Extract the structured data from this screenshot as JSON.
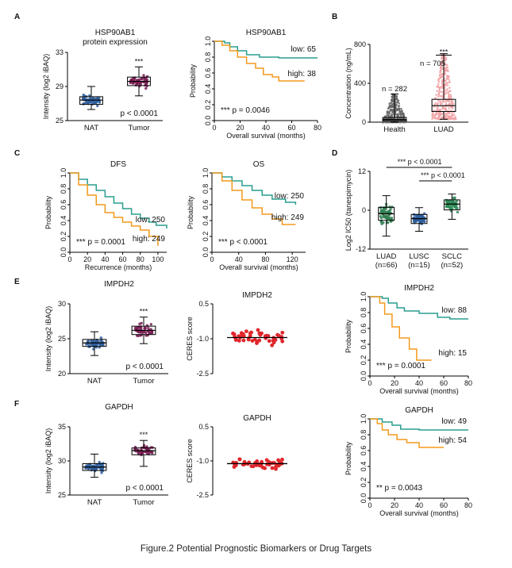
{
  "caption": "Figure.2 Potential Prognostic Biomarkers or Drug Targets",
  "colors": {
    "nat": "#2f5f9e",
    "tumor": "#7a1f55",
    "health": "#666666",
    "luad_conc": "#f2a3a7",
    "high": "#f39a1d",
    "low": "#2a9d8f",
    "luad": "#2e7d4f",
    "lusc": "#2f5f9e",
    "sclc": "#2e8b57",
    "ceres": "#e0262b"
  },
  "chart_data": [
    {
      "id": "A1",
      "panel": "A",
      "type": "box",
      "title": "HSP90AB1",
      "subtitle": "protein expression",
      "ylabel": "Intensity (log2 iBAQ)",
      "categories": [
        "NAT",
        "Tumor"
      ],
      "ylim": [
        25,
        33
      ],
      "yticks": [
        "25",
        "29",
        "33"
      ],
      "boxes": [
        {
          "q1": 26.9,
          "med": 27.4,
          "q3": 27.8,
          "min": 26.3,
          "max": 29.0
        },
        {
          "q1": 29.1,
          "med": 29.6,
          "q3": 30.1,
          "min": 27.9,
          "max": 31.3
        }
      ],
      "annotations": [
        "***",
        "p < 0.0001"
      ]
    },
    {
      "id": "A2",
      "panel": "A",
      "type": "line",
      "title": "HSP90AB1",
      "xlabel": "Overall survival (months)",
      "ylabel": "Probability",
      "xlim": [
        0,
        80
      ],
      "ylim": [
        0,
        1
      ],
      "xticks": [
        "0",
        "20",
        "40",
        "60",
        "80"
      ],
      "yticks": [
        "0.0",
        "0.2",
        "0.4",
        "0.6",
        "0.8",
        "1.0"
      ],
      "series": [
        {
          "name": "low: 65",
          "points": [
            [
              0,
              1
            ],
            [
              8,
              0.98
            ],
            [
              12,
              0.93
            ],
            [
              18,
              0.88
            ],
            [
              25,
              0.83
            ],
            [
              35,
              0.8
            ],
            [
              50,
              0.79
            ],
            [
              80,
              0.79
            ]
          ]
        },
        {
          "name": "high: 38",
          "points": [
            [
              0,
              1
            ],
            [
              6,
              0.95
            ],
            [
              12,
              0.88
            ],
            [
              18,
              0.8
            ],
            [
              25,
              0.72
            ],
            [
              32,
              0.66
            ],
            [
              38,
              0.58
            ],
            [
              45,
              0.55
            ],
            [
              50,
              0.5
            ],
            [
              70,
              0.5
            ]
          ]
        }
      ],
      "annotations": [
        "*** p = 0.0046"
      ]
    },
    {
      "id": "B",
      "panel": "B",
      "type": "box",
      "title": "",
      "ylabel": "Concentration (ng/mL)",
      "categories": [
        "Health",
        "LUAD"
      ],
      "ylim": [
        0,
        800
      ],
      "yticks": [
        "0",
        "400",
        "800"
      ],
      "boxes": [
        {
          "q1": 15,
          "med": 28,
          "q3": 48,
          "min": 0,
          "max": 290
        },
        {
          "q1": 110,
          "med": 170,
          "q3": 235,
          "min": 30,
          "max": 705
        }
      ],
      "annotations": [
        "n = 282",
        "n = 705",
        "***"
      ]
    },
    {
      "id": "C1",
      "panel": "C",
      "type": "line",
      "title": "DFS",
      "xlabel": "Recurrence (months)",
      "ylabel": "Probability",
      "xlim": [
        0,
        110
      ],
      "ylim": [
        0,
        1
      ],
      "xticks": [
        "0",
        "20",
        "40",
        "60",
        "80",
        "100"
      ],
      "yticks": [
        "0.0",
        "0.2",
        "0.4",
        "0.6",
        "0.8",
        "1.0"
      ],
      "series": [
        {
          "name": "low: 250",
          "points": [
            [
              0,
              1
            ],
            [
              10,
              0.92
            ],
            [
              20,
              0.85
            ],
            [
              30,
              0.78
            ],
            [
              40,
              0.7
            ],
            [
              50,
              0.62
            ],
            [
              60,
              0.55
            ],
            [
              70,
              0.48
            ],
            [
              80,
              0.43
            ],
            [
              90,
              0.38
            ],
            [
              98,
              0.34
            ],
            [
              110,
              0.3
            ]
          ]
        },
        {
          "name": "high: 249",
          "points": [
            [
              0,
              1
            ],
            [
              10,
              0.85
            ],
            [
              20,
              0.72
            ],
            [
              30,
              0.6
            ],
            [
              40,
              0.5
            ],
            [
              50,
              0.44
            ],
            [
              60,
              0.38
            ],
            [
              70,
              0.33
            ],
            [
              80,
              0.28
            ],
            [
              90,
              0.2
            ],
            [
              100,
              0.08
            ]
          ]
        }
      ],
      "annotations": [
        "*** p = 0.0001"
      ]
    },
    {
      "id": "C2",
      "panel": "C",
      "type": "line",
      "title": "OS",
      "xlabel": "Overall survival (months)",
      "ylabel": "Probability",
      "xlim": [
        0,
        140
      ],
      "ylim": [
        0,
        1
      ],
      "xticks": [
        "0",
        "40",
        "80",
        "120"
      ],
      "yticks": [
        "0.0",
        "0.2",
        "0.4",
        "0.6",
        "0.8",
        "1.0"
      ],
      "series": [
        {
          "name": "low: 250",
          "points": [
            [
              0,
              1
            ],
            [
              15,
              0.95
            ],
            [
              30,
              0.9
            ],
            [
              45,
              0.84
            ],
            [
              60,
              0.78
            ],
            [
              75,
              0.72
            ],
            [
              90,
              0.67
            ],
            [
              110,
              0.63
            ],
            [
              125,
              0.6
            ]
          ]
        },
        {
          "name": "high: 249",
          "points": [
            [
              0,
              1
            ],
            [
              15,
              0.9
            ],
            [
              30,
              0.78
            ],
            [
              45,
              0.66
            ],
            [
              60,
              0.56
            ],
            [
              75,
              0.48
            ],
            [
              90,
              0.42
            ],
            [
              105,
              0.35
            ],
            [
              125,
              0.35
            ]
          ]
        }
      ],
      "annotations": [
        "*** p < 0.0001"
      ]
    },
    {
      "id": "D",
      "panel": "D",
      "type": "box",
      "title": "",
      "ylabel": "Log2 IC50 (tanespimycin)",
      "categories": [
        "LUAD\n(n=66)",
        "LUSC\n(n=15)",
        "SCLC\n(n=52)"
      ],
      "ylim": [
        -12,
        12
      ],
      "yticks": [
        "-12",
        "0",
        "12"
      ],
      "boxes": [
        {
          "q1": -3.1,
          "med": -1.1,
          "q3": 0.9,
          "min": -8,
          "max": 4.5
        },
        {
          "q1": -4.1,
          "med": -2.6,
          "q3": -1.3,
          "min": -6.5,
          "max": 0.8
        },
        {
          "q1": 0.1,
          "med": 1.9,
          "q3": 3.2,
          "min": -2.8,
          "max": 5.0
        }
      ],
      "annotations": [
        "*** p < 0.0001",
        "*** p < 0.0001"
      ]
    },
    {
      "id": "E1",
      "panel": "E",
      "type": "box",
      "title": "IMPDH2",
      "ylabel": "Intensity (log2 iBAQ)",
      "categories": [
        "NAT",
        "Tumor"
      ],
      "ylim": [
        20,
        30
      ],
      "yticks": [
        "20",
        "25",
        "30"
      ],
      "boxes": [
        {
          "q1": 23.9,
          "med": 24.4,
          "q3": 24.9,
          "min": 22.6,
          "max": 26.0
        },
        {
          "q1": 25.6,
          "med": 26.2,
          "q3": 26.8,
          "min": 24.3,
          "max": 28.1
        }
      ],
      "annotations": [
        "***",
        "p < 0.0001"
      ]
    },
    {
      "id": "E2",
      "panel": "E",
      "type": "scatter",
      "title": "IMPDH2",
      "ylabel": "CERES score",
      "ylim": [
        -2.5,
        0.5
      ],
      "yticks": [
        "0.5",
        "-1.0",
        "-2.5"
      ],
      "center": -0.95,
      "spread": 0.35,
      "count": 45,
      "annotations": []
    },
    {
      "id": "E3",
      "panel": "E",
      "type": "line",
      "title": "IMPDH2",
      "xlabel": "Overall survival (months)",
      "ylabel": "Probability",
      "xlim": [
        0,
        80
      ],
      "ylim": [
        0,
        1
      ],
      "xticks": [
        "0",
        "20",
        "40",
        "60",
        "80"
      ],
      "yticks": [
        "0.0",
        "0.2",
        "0.4",
        "0.6",
        "0.8",
        "1.0"
      ],
      "series": [
        {
          "name": "low: 88",
          "points": [
            [
              0,
              1
            ],
            [
              10,
              0.98
            ],
            [
              15,
              0.92
            ],
            [
              22,
              0.86
            ],
            [
              28,
              0.82
            ],
            [
              40,
              0.79
            ],
            [
              55,
              0.74
            ],
            [
              65,
              0.72
            ],
            [
              80,
              0.72
            ]
          ]
        },
        {
          "name": "high: 15",
          "points": [
            [
              0,
              1
            ],
            [
              8,
              0.92
            ],
            [
              12,
              0.78
            ],
            [
              18,
              0.62
            ],
            [
              24,
              0.48
            ],
            [
              32,
              0.34
            ],
            [
              38,
              0.2
            ],
            [
              50,
              0.2
            ]
          ]
        }
      ],
      "annotations": [
        "*** p = 0.0001"
      ]
    },
    {
      "id": "F1",
      "panel": "F",
      "type": "box",
      "title": "GAPDH",
      "ylabel": "Intensity (log2 iBAQ)",
      "categories": [
        "NAT",
        "Tumor"
      ],
      "ylim": [
        25,
        35
      ],
      "yticks": [
        "25",
        "30",
        "35"
      ],
      "boxes": [
        {
          "q1": 28.6,
          "med": 29.1,
          "q3": 29.6,
          "min": 27.6,
          "max": 31.0
        },
        {
          "q1": 30.9,
          "med": 31.5,
          "q3": 31.9,
          "min": 29.2,
          "max": 33.0
        }
      ],
      "annotations": [
        "***",
        "p < 0.0001"
      ]
    },
    {
      "id": "F2",
      "panel": "F",
      "type": "scatter",
      "title": "GAPDH",
      "ylabel": "CERES score",
      "ylim": [
        -2.5,
        0.5
      ],
      "yticks": [
        "0.5",
        "-1.0",
        "-2.5"
      ],
      "center": -1.12,
      "spread": 0.28,
      "count": 45,
      "annotations": []
    },
    {
      "id": "F3",
      "panel": "F",
      "type": "line",
      "title": "GAPDH",
      "xlabel": "Overall survival (months)",
      "ylabel": "Probability",
      "xlim": [
        0,
        80
      ],
      "ylim": [
        0,
        1
      ],
      "xticks": [
        "0",
        "20",
        "40",
        "60",
        "80"
      ],
      "yticks": [
        "0.0",
        "0.2",
        "0.4",
        "0.6",
        "0.8",
        "1.0"
      ],
      "series": [
        {
          "name": "low: 49",
          "points": [
            [
              0,
              1
            ],
            [
              10,
              0.96
            ],
            [
              18,
              0.92
            ],
            [
              25,
              0.87
            ],
            [
              40,
              0.86
            ],
            [
              60,
              0.86
            ],
            [
              80,
              0.86
            ]
          ]
        },
        {
          "name": "high: 54",
          "points": [
            [
              0,
              1
            ],
            [
              6,
              0.94
            ],
            [
              10,
              0.86
            ],
            [
              15,
              0.8
            ],
            [
              22,
              0.74
            ],
            [
              30,
              0.7
            ],
            [
              40,
              0.64
            ],
            [
              60,
              0.64
            ]
          ]
        }
      ],
      "annotations": [
        "** p = 0.0043"
      ]
    }
  ]
}
